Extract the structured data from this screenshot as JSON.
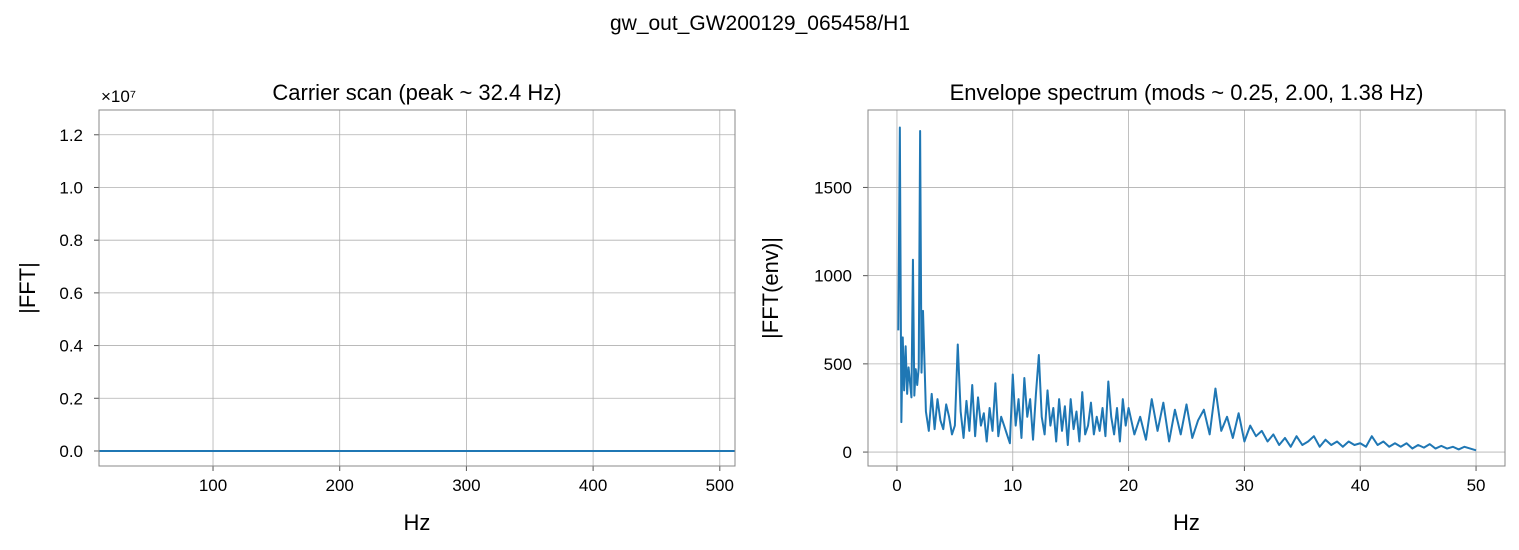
{
  "title": "gw_out_GW200129_065458/H1",
  "chart_data": [
    {
      "type": "line",
      "title": "Carrier scan (peak ~ 32.4 Hz)",
      "xlabel": "Hz",
      "ylabel": "|FFT|",
      "y_offset_label": "×10⁷",
      "x": [
        10,
        100,
        200,
        300,
        400,
        512
      ],
      "series": [
        {
          "color": "#1f77b4",
          "values": [
            0,
            0,
            0,
            0,
            0,
            0
          ]
        }
      ],
      "xlim": [
        10,
        512
      ],
      "xticks": [
        100,
        200,
        300,
        400,
        500
      ],
      "ylim": [
        -0.057,
        1.294
      ],
      "yticks": [
        {
          "value": 0,
          "label": "0.0"
        },
        0.2,
        0.4,
        0.6,
        0.8,
        {
          "value": 1,
          "label": "1.0"
        },
        1.2
      ],
      "grid": true
    },
    {
      "type": "line",
      "title": "Envelope spectrum (mods ~ 0.25, 2.00, 1.38 Hz)",
      "xlabel": "Hz",
      "ylabel": "|FFT(env)|",
      "x": [
        0.12,
        0.25,
        0.38,
        0.5,
        0.62,
        0.75,
        0.88,
        1.0,
        1.12,
        1.25,
        1.38,
        1.5,
        1.62,
        1.75,
        1.88,
        2.0,
        2.12,
        2.25,
        2.5,
        2.75,
        3.0,
        3.25,
        3.5,
        3.75,
        4.0,
        4.25,
        4.5,
        4.75,
        5.0,
        5.25,
        5.5,
        5.75,
        6.0,
        6.25,
        6.5,
        6.75,
        7.0,
        7.25,
        7.5,
        7.75,
        8.0,
        8.25,
        8.5,
        8.75,
        9.0,
        9.25,
        9.5,
        9.75,
        10.0,
        10.25,
        10.5,
        10.75,
        11.0,
        11.25,
        11.5,
        11.75,
        12.0,
        12.25,
        12.5,
        12.75,
        13.0,
        13.25,
        13.5,
        13.75,
        14.0,
        14.25,
        14.5,
        14.75,
        15.0,
        15.25,
        15.5,
        15.75,
        16.0,
        16.25,
        16.5,
        16.75,
        17.0,
        17.25,
        17.5,
        17.75,
        18.0,
        18.25,
        18.5,
        18.75,
        19.0,
        19.25,
        19.5,
        19.75,
        20.0,
        20.5,
        21.0,
        21.5,
        22.0,
        22.5,
        23.0,
        23.5,
        24.0,
        24.5,
        25.0,
        25.5,
        26.0,
        26.5,
        27.0,
        27.5,
        28.0,
        28.5,
        29.0,
        29.5,
        30.0,
        30.5,
        31.0,
        31.5,
        32.0,
        32.5,
        33.0,
        33.5,
        34.0,
        34.5,
        35.0,
        35.5,
        36.0,
        36.5,
        37.0,
        37.5,
        38.0,
        38.5,
        39.0,
        39.5,
        40.0,
        40.5,
        41.0,
        41.5,
        42.0,
        42.5,
        43.0,
        43.5,
        44.0,
        44.5,
        45.0,
        45.5,
        46.0,
        46.5,
        47.0,
        47.5,
        48.0,
        48.5,
        49.0,
        49.5,
        50.0
      ],
      "series": [
        {
          "color": "#1f77b4",
          "values": [
            690,
            1840,
            170,
            650,
            350,
            600,
            330,
            480,
            400,
            310,
            1090,
            320,
            470,
            380,
            480,
            1820,
            450,
            800,
            230,
            120,
            330,
            130,
            300,
            180,
            130,
            270,
            200,
            100,
            150,
            610,
            230,
            80,
            290,
            120,
            380,
            90,
            310,
            150,
            220,
            60,
            250,
            120,
            390,
            90,
            200,
            150,
            100,
            50,
            440,
            150,
            300,
            80,
            420,
            200,
            300,
            70,
            330,
            550,
            200,
            100,
            350,
            150,
            250,
            60,
            300,
            120,
            260,
            40,
            300,
            130,
            230,
            60,
            340,
            100,
            150,
            280,
            100,
            200,
            120,
            250,
            90,
            400,
            200,
            100,
            250,
            60,
            300,
            150,
            250,
            100,
            200,
            70,
            300,
            120,
            280,
            60,
            240,
            100,
            270,
            80,
            180,
            240,
            100,
            360,
            120,
            200,
            80,
            220,
            60,
            150,
            90,
            120,
            60,
            100,
            40,
            80,
            30,
            90,
            40,
            60,
            90,
            30,
            70,
            40,
            60,
            30,
            60,
            40,
            50,
            30,
            90,
            40,
            60,
            30,
            50,
            30,
            50,
            20,
            40,
            25,
            45,
            20,
            35,
            20,
            30,
            15,
            30,
            20,
            10
          ]
        }
      ],
      "xlim": [
        -2.5,
        52.5
      ],
      "xticks": [
        0,
        10,
        20,
        30,
        40,
        50
      ],
      "ylim": [
        -79,
        1939
      ],
      "yticks": [
        0,
        500,
        1000,
        1500
      ],
      "grid": true
    }
  ]
}
